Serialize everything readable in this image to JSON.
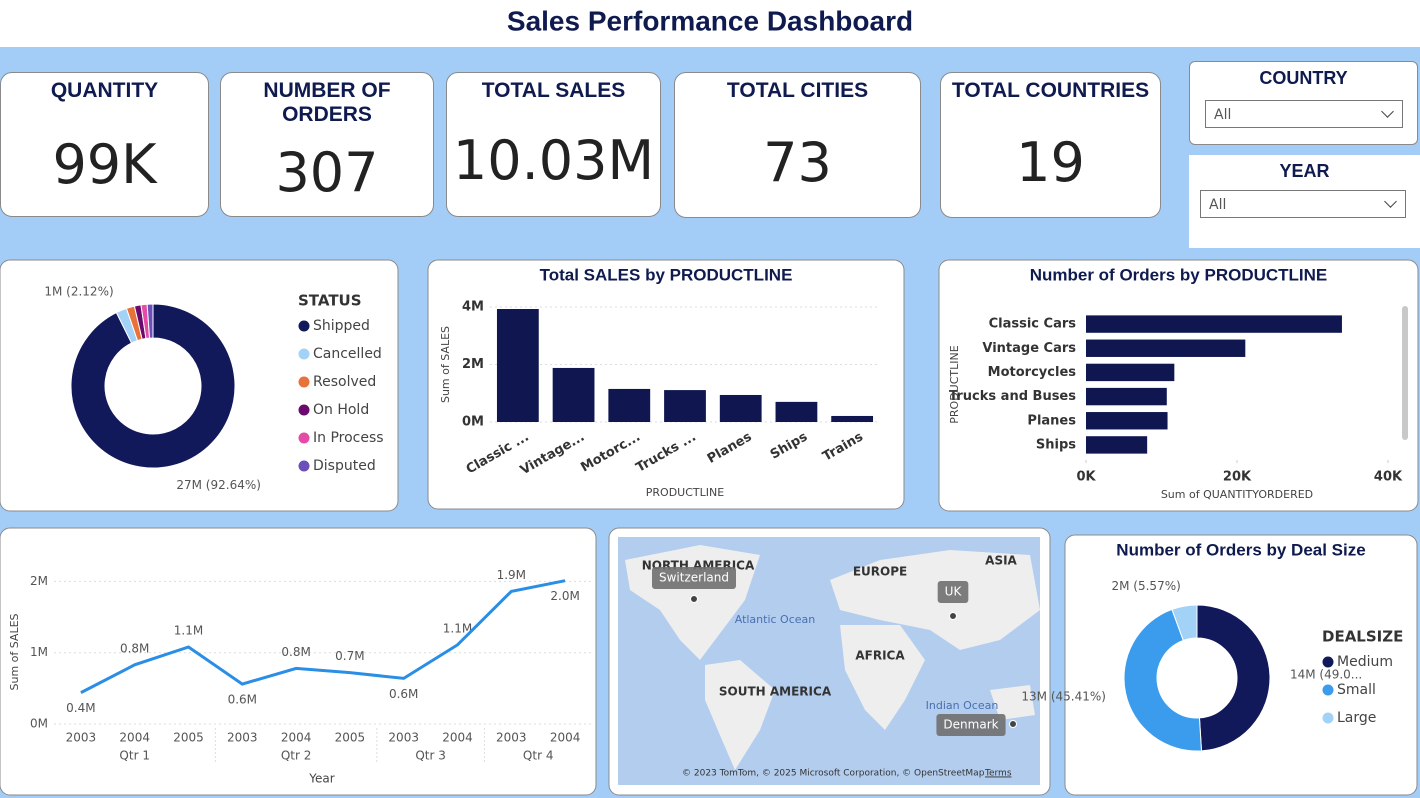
{
  "header": {
    "title": "Sales Performance Dashboard"
  },
  "kpis": [
    {
      "label": "QUANTITY",
      "value": "99K"
    },
    {
      "label": "NUMBER OF ORDERS",
      "value": "307"
    },
    {
      "label": "TOTAL SALES",
      "value": "10.03M"
    },
    {
      "label": "TOTAL CITIES",
      "value": "73"
    },
    {
      "label": "TOTAL COUNTRIES",
      "value": "19"
    }
  ],
  "filters": [
    {
      "label": "COUNTRY",
      "value": "All"
    },
    {
      "label": "YEAR",
      "value": "All"
    }
  ],
  "chart_data": [
    {
      "type": "pie",
      "donut": true,
      "legend_title": "STATUS",
      "legend": "right",
      "categories": [
        "Shipped",
        "Cancelled",
        "Resolved",
        "On Hold",
        "In Process",
        "Disputed"
      ],
      "values": [
        92.64,
        2.12,
        1.6,
        1.3,
        1.2,
        1.14
      ],
      "value_labels": [
        "27M (92.64%)",
        "1M (2.12%)",
        null,
        null,
        null,
        null
      ],
      "colors": [
        "#12195a",
        "#a3d2f7",
        "#e8733a",
        "#6b0a6e",
        "#e44ca8",
        "#6b4fbb"
      ]
    },
    {
      "type": "bar",
      "title": "Total SALES by PRODUCTLINE",
      "x_label": "PRODUCTLINE",
      "y_label": "Sum of SALES",
      "categories": [
        "Classic ...",
        "Vintage...",
        "Motorc...",
        "Trucks ...",
        "Planes",
        "Ships",
        "Trains"
      ],
      "values": [
        3930000,
        1880000,
        1150000,
        1110000,
        940000,
        700000,
        210000
      ],
      "color": "#0f1650",
      "ylim": [
        0,
        4000000
      ],
      "yticks": [
        {
          "value": 0,
          "label": "0M"
        },
        {
          "value": 2000000,
          "label": "2M"
        },
        {
          "value": 4000000,
          "label": "4M"
        }
      ],
      "grid": true
    },
    {
      "type": "hbar",
      "title": "Number of Orders by PRODUCTLINE",
      "x_label": "Sum of QUANTITYORDERED",
      "y_label": "PRODUCTLINE",
      "categories": [
        "Classic Cars",
        "Vintage Cars",
        "Motorcycles",
        "Trucks and Buses",
        "Planes",
        "Ships"
      ],
      "values": [
        33900,
        21100,
        11700,
        10700,
        10800,
        8100
      ],
      "color": "#0f1650",
      "xlim": [
        0,
        40000
      ],
      "xticks": [
        {
          "value": 0,
          "label": "0K"
        },
        {
          "value": 20000,
          "label": "20K"
        },
        {
          "value": 40000,
          "label": "40K"
        }
      ]
    },
    {
      "type": "line",
      "x_label": "Year",
      "y_label": "Sum of SALES",
      "categories": [
        "2003",
        "2004",
        "2005",
        "2003",
        "2004",
        "2005",
        "2003",
        "2004",
        "2003",
        "2004"
      ],
      "quarters": [
        "Qtr 1",
        "Qtr 1",
        "Qtr 1",
        "Qtr 2",
        "Qtr 2",
        "Qtr 2",
        "Qtr 3",
        "Qtr 3",
        "Qtr 4",
        "Qtr 4"
      ],
      "values": [
        440000,
        830000,
        1080000,
        560000,
        780000,
        720000,
        640000,
        1110000,
        1860000,
        2010000
      ],
      "value_labels": [
        "0.4M",
        "0.8M",
        "1.1M",
        "0.6M",
        "0.8M",
        "0.7M",
        "0.6M",
        "1.1M",
        "1.9M",
        "2.0M"
      ],
      "color": "#2b8ee6",
      "ylim": [
        0,
        2300000
      ],
      "yticks": [
        {
          "value": 0,
          "label": "0M"
        },
        {
          "value": 1000000,
          "label": "1M"
        },
        {
          "value": 2000000,
          "label": "2M"
        }
      ],
      "grid": true
    },
    {
      "type": "pie",
      "donut": true,
      "title": "Number of Orders by Deal Size",
      "legend_title": "DEALSIZE",
      "legend": "right",
      "categories": [
        "Medium",
        "Small",
        "Large"
      ],
      "values": [
        49.02,
        45.41,
        5.57
      ],
      "value_labels": [
        "14M (49.0...",
        "13M (45.41%)",
        "2M (5.57%)"
      ],
      "colors": [
        "#12195a",
        "#3b9ced",
        "#a3d2f7"
      ]
    }
  ],
  "map": {
    "regions": [
      "NORTH AMERICA",
      "EUROPE",
      "ASIA",
      "AFRICA",
      "SOUTH AMERICA"
    ],
    "oceans": [
      "Atlantic Ocean",
      "Indian Ocean"
    ],
    "locations": [
      "Switzerland",
      "UK",
      "Denmark"
    ],
    "attribution": "© 2023 TomTom, © 2025 Microsoft Corporation, © OpenStreetMap",
    "terms": "Terms"
  }
}
